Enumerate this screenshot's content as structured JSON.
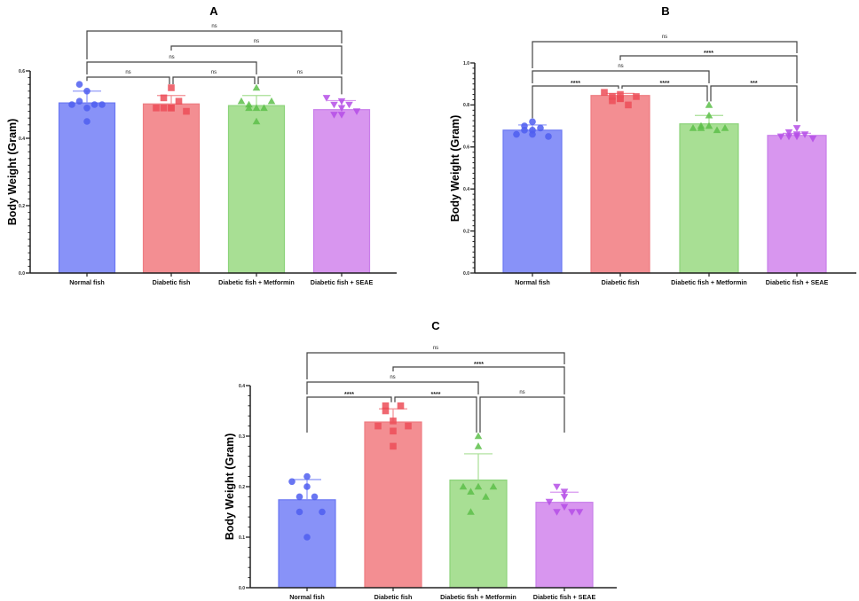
{
  "chart_data": [
    {
      "type": "bar",
      "panel": "A",
      "title": "A",
      "xlabel": "",
      "ylabel": "Body Weight (Gram)",
      "ylim": [
        0,
        0.6
      ],
      "yticks": [
        0.0,
        0.2,
        0.4,
        0.6
      ],
      "ytick_labels": [
        "0.0",
        "0.2",
        "0.4",
        "0.6"
      ],
      "categories": [
        "Normal fish",
        "Diabetic fish",
        "Diabetic fish + Metformin",
        "Diabetic fish + SEAE"
      ],
      "values": [
        0.505,
        0.502,
        0.497,
        0.485
      ],
      "error": [
        0.035,
        0.025,
        0.03,
        0.027
      ],
      "points": [
        [
          0.5,
          0.51,
          0.56,
          0.54,
          0.49,
          0.45,
          0.5,
          0.5
        ],
        [
          0.49,
          0.52,
          0.49,
          0.55,
          0.49,
          0.49,
          0.51,
          0.48
        ],
        [
          0.51,
          0.5,
          0.49,
          0.55,
          0.45,
          0.49,
          0.49,
          0.51
        ],
        [
          0.52,
          0.5,
          0.47,
          0.51,
          0.49,
          0.47,
          0.5,
          0.48
        ]
      ],
      "comparisons": [
        {
          "from": 0,
          "to": 1,
          "label": "ns"
        },
        {
          "from": 1,
          "to": 2,
          "label": "ns"
        },
        {
          "from": 2,
          "to": 3,
          "label": "ns"
        },
        {
          "from": 0,
          "to": 2,
          "label": "ns"
        },
        {
          "from": 1,
          "to": 3,
          "label": "ns"
        },
        {
          "from": 0,
          "to": 3,
          "label": "ns"
        }
      ]
    },
    {
      "type": "bar",
      "panel": "B",
      "title": "B",
      "xlabel": "",
      "ylabel": "Body Weight (Gram)",
      "ylim": [
        0,
        1.0
      ],
      "yticks": [
        0.0,
        0.2,
        0.4,
        0.6,
        0.8,
        1.0
      ],
      "ytick_labels": [
        "0.0",
        "0.2",
        "0.4",
        "0.6",
        "0.8",
        "1.0"
      ],
      "categories": [
        "Normal fish",
        "Diabetic fish",
        "Diabetic fish + Metformin",
        "Diabetic fish + SEAE"
      ],
      "values": [
        0.68,
        0.845,
        0.71,
        0.655
      ],
      "error": [
        0.025,
        0.01,
        0.04,
        0.01
      ],
      "points": [
        [
          0.66,
          0.68,
          0.7,
          0.66,
          0.72,
          0.68,
          0.69,
          0.65
        ],
        [
          0.86,
          0.82,
          0.84,
          0.83,
          0.83,
          0.85,
          0.8,
          0.84
        ],
        [
          0.69,
          0.7,
          0.69,
          0.8,
          0.75,
          0.7,
          0.68,
          0.69
        ],
        [
          0.65,
          0.67,
          0.65,
          0.66,
          0.69,
          0.65,
          0.66,
          0.64
        ]
      ],
      "comparisons": [
        {
          "from": 0,
          "to": 1,
          "label": "****"
        },
        {
          "from": 1,
          "to": 2,
          "label": "****"
        },
        {
          "from": 2,
          "to": 3,
          "label": "***"
        },
        {
          "from": 0,
          "to": 2,
          "label": "ns"
        },
        {
          "from": 1,
          "to": 3,
          "label": "****"
        },
        {
          "from": 0,
          "to": 3,
          "label": "ns"
        }
      ]
    },
    {
      "type": "bar",
      "panel": "C",
      "title": "C",
      "xlabel": "",
      "ylabel": "Body Weight (Gram)",
      "ylim": [
        0,
        0.4
      ],
      "yticks": [
        0.0,
        0.1,
        0.2,
        0.3,
        0.4
      ],
      "ytick_labels": [
        "0.0",
        "0.1",
        "0.2",
        "0.3",
        "0.4"
      ],
      "categories": [
        "Normal fish",
        "Diabetic fish",
        "Diabetic fish + Metformin",
        "Diabetic fish + SEAE"
      ],
      "values": [
        0.174,
        0.328,
        0.213,
        0.169
      ],
      "error": [
        0.04,
        0.026,
        0.052,
        0.02
      ],
      "points": [
        [
          0.21,
          0.18,
          0.15,
          0.1,
          0.22,
          0.2,
          0.18,
          0.15
        ],
        [
          0.32,
          0.35,
          0.36,
          0.33,
          0.31,
          0.28,
          0.36,
          0.32
        ],
        [
          0.2,
          0.19,
          0.15,
          0.3,
          0.28,
          0.2,
          0.18,
          0.2
        ],
        [
          0.17,
          0.15,
          0.2,
          0.18,
          0.16,
          0.19,
          0.15,
          0.15
        ]
      ],
      "comparisons": [
        {
          "from": 0,
          "to": 1,
          "label": "****"
        },
        {
          "from": 1,
          "to": 2,
          "label": "****"
        },
        {
          "from": 2,
          "to": 3,
          "label": "ns"
        },
        {
          "from": 0,
          "to": 2,
          "label": "ns"
        },
        {
          "from": 1,
          "to": 3,
          "label": "****"
        },
        {
          "from": 0,
          "to": 3,
          "label": "ns"
        }
      ]
    }
  ],
  "style": {
    "bar_fill": [
      "#8892F8",
      "#F38E92",
      "#A8DF94",
      "#D896EF"
    ],
    "bar_edge": [
      "#6B78F2",
      "#EE7C82",
      "#8CD37A",
      "#C97EEA"
    ],
    "point_color": [
      "#4F5EF0",
      "#EC4E58",
      "#5DC04A",
      "#B54EE6"
    ],
    "marker": [
      "circle",
      "square",
      "triangle-up",
      "triangle-down"
    ],
    "axis_color": "#222222",
    "bracket_color": "#444444"
  }
}
